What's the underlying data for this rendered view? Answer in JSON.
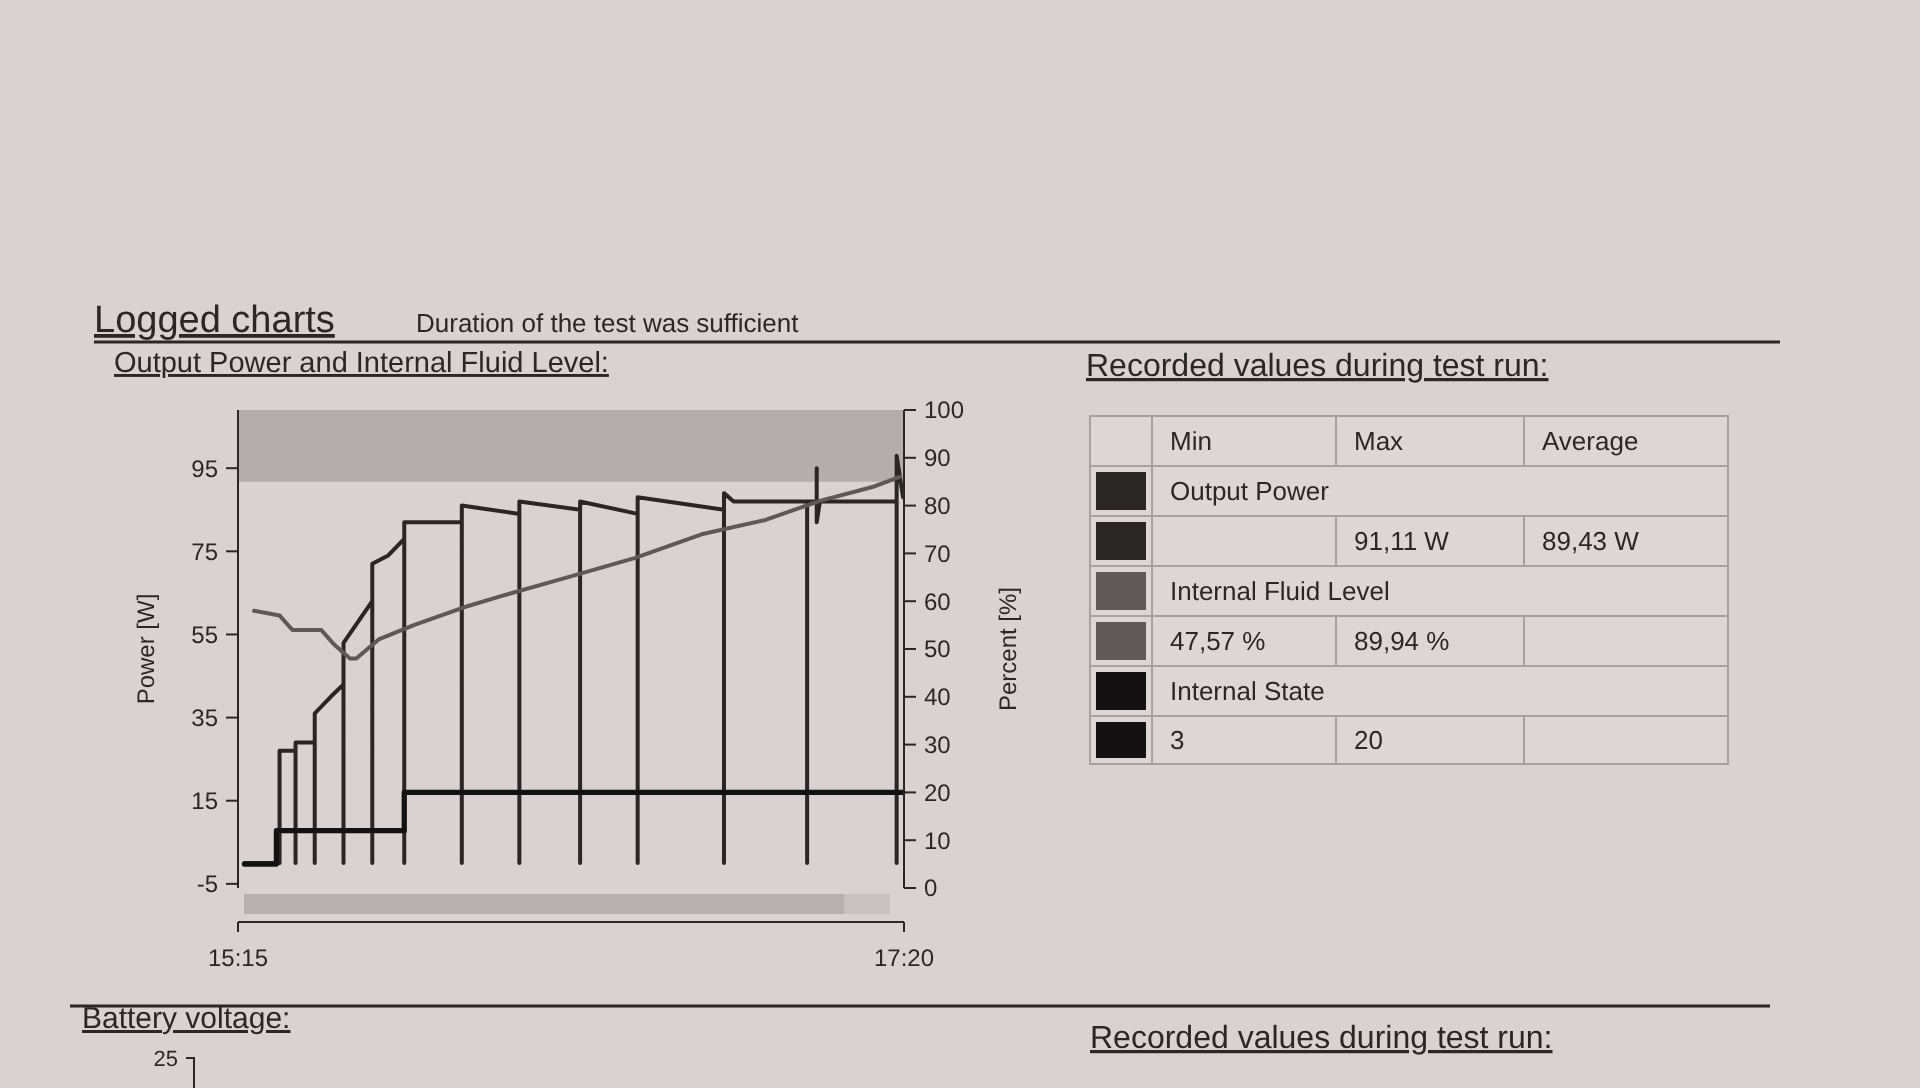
{
  "chart_data": [
    {
      "type": "line",
      "title": "Output Power and Internal Fluid Level:",
      "annotations": [
        "Logged charts",
        "Duration of the test was sufficient"
      ],
      "ylabel": "Power [W]",
      "y2label": "Percent [%]",
      "xlim": [
        15.25,
        17.333
      ],
      "xticks": [
        {
          "value": 15.25,
          "label": "15:15"
        },
        {
          "value": 17.333,
          "label": "17:20"
        }
      ],
      "ylim": [
        -6,
        109
      ],
      "yticks": [
        -5,
        15,
        35,
        55,
        75,
        95
      ],
      "y2lim": [
        0,
        100
      ],
      "y2ticks": [
        0,
        10,
        20,
        30,
        40,
        50,
        60,
        70,
        80,
        90,
        100
      ],
      "bands": [
        {
          "axis": "y2",
          "from": 85,
          "to": 100,
          "color": "#b3adac"
        }
      ],
      "legend": "right",
      "series": [
        {
          "name": "Output Power",
          "color": "#2a2626",
          "x": [
            15.27,
            15.38,
            15.38,
            15.43,
            15.43,
            15.43,
            15.49,
            15.49,
            15.49,
            15.54,
            15.58,
            15.58,
            15.58,
            15.67,
            15.67,
            15.67,
            15.72,
            15.77,
            15.77,
            15.77,
            15.95,
            15.95,
            15.95,
            16.13,
            16.13,
            16.13,
            16.32,
            16.32,
            16.32,
            16.5,
            16.5,
            16.5,
            16.77,
            16.77,
            16.77,
            16.8,
            17.03,
            17.03,
            17.03,
            17.06,
            17.06,
            17.06,
            17.07,
            17.31,
            17.31,
            17.31,
            17.33
          ],
          "values": [
            0,
            0,
            27,
            27,
            0,
            29,
            29,
            0,
            36,
            40,
            43,
            0,
            53,
            63,
            0,
            72,
            74,
            78,
            0,
            82,
            82,
            0,
            86,
            84,
            0,
            87,
            85,
            0,
            87,
            84,
            0,
            88,
            85,
            0,
            89,
            87,
            87,
            0,
            87,
            87,
            95,
            82,
            87,
            87,
            0,
            98,
            88
          ]
        },
        {
          "name": "Internal Fluid Level",
          "color": "#5e5858",
          "axis": "y2",
          "x": [
            15.3,
            15.38,
            15.42,
            15.51,
            15.55,
            15.6,
            15.62,
            15.69,
            15.8,
            15.97,
            16.07,
            16.28,
            16.49,
            16.7,
            16.9,
            17.07,
            17.24,
            17.32
          ],
          "values": [
            58,
            57,
            54,
            54,
            51,
            48,
            48,
            52,
            55,
            59,
            61,
            65,
            69,
            74,
            77,
            81,
            84,
            86
          ]
        },
        {
          "name": "Internal State",
          "color": "#131111",
          "type": "step",
          "axis": "y2",
          "x": [
            15.27,
            15.37,
            15.77,
            17.33
          ],
          "values": [
            5,
            12,
            20,
            20
          ]
        }
      ]
    },
    {
      "type": "other",
      "title": "Recorded values during test run:",
      "annotations": [
        "Min",
        "Max",
        "Average",
        "91,11 W",
        "89,43 W",
        "47,57 %",
        "89,94 %",
        "3",
        "20"
      ]
    },
    {
      "type": "other",
      "title": "Battery voltage:",
      "annotations": [
        "25"
      ]
    },
    {
      "type": "other",
      "title": "Recorded values during test run:"
    }
  ]
}
